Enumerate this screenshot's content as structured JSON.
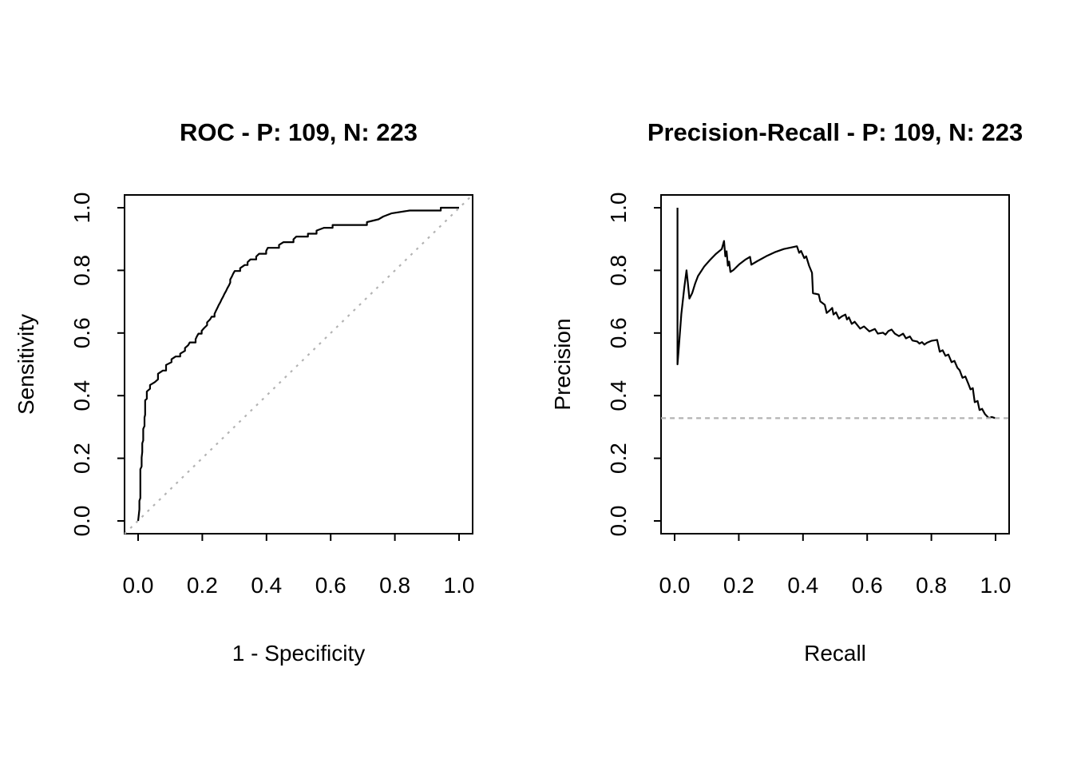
{
  "figure": {
    "background": "#ffffff",
    "curve_color": "#000000",
    "reference_color": "#b3b3b3"
  },
  "chart_data": [
    {
      "type": "line",
      "title": "ROC - P: 109, N: 223",
      "xlabel": "1 - Specificity",
      "ylabel": "Sensitivity",
      "positives": 109,
      "negatives": 223,
      "xlim": [
        0,
        1
      ],
      "ylim": [
        0,
        1
      ],
      "grid": false,
      "legend": "none",
      "xticks": {
        "values": [
          0,
          0.2,
          0.4,
          0.6,
          0.8,
          1.0
        ],
        "labels": [
          "0.0",
          "0.2",
          "0.4",
          "0.6",
          "0.8",
          "1.0"
        ]
      },
      "yticks": {
        "values": [
          0,
          0.2,
          0.4,
          0.6,
          0.8,
          1.0
        ],
        "labels": [
          "0.0",
          "0.2",
          "0.4",
          "0.6",
          "0.8",
          "1.0"
        ]
      },
      "series": [
        {
          "name": "roc-curve",
          "linetype": "solid",
          "color": "#000000",
          "points": [
            [
              0,
              0
            ],
            [
              0.002,
              0.018
            ],
            [
              0.004,
              0.037
            ],
            [
              0.004,
              0.064
            ],
            [
              0.007,
              0.073
            ],
            [
              0.007,
              0.165
            ],
            [
              0.011,
              0.174
            ],
            [
              0.011,
              0.202
            ],
            [
              0.013,
              0.22
            ],
            [
              0.013,
              0.248
            ],
            [
              0.016,
              0.257
            ],
            [
              0.016,
              0.294
            ],
            [
              0.02,
              0.303
            ],
            [
              0.02,
              0.33
            ],
            [
              0.022,
              0.339
            ],
            [
              0.022,
              0.385
            ],
            [
              0.027,
              0.39
            ],
            [
              0.027,
              0.413
            ],
            [
              0.037,
              0.422
            ],
            [
              0.037,
              0.434
            ],
            [
              0.052,
              0.443
            ],
            [
              0.062,
              0.452
            ],
            [
              0.062,
              0.47
            ],
            [
              0.077,
              0.48
            ],
            [
              0.087,
              0.48
            ],
            [
              0.087,
              0.498
            ],
            [
              0.104,
              0.507
            ],
            [
              0.104,
              0.516
            ],
            [
              0.117,
              0.525
            ],
            [
              0.131,
              0.525
            ],
            [
              0.131,
              0.534
            ],
            [
              0.146,
              0.543
            ],
            [
              0.146,
              0.552
            ],
            [
              0.156,
              0.561
            ],
            [
              0.161,
              0.57
            ],
            [
              0.179,
              0.57
            ],
            [
              0.179,
              0.58
            ],
            [
              0.183,
              0.589
            ],
            [
              0.188,
              0.598
            ],
            [
              0.198,
              0.598
            ],
            [
              0.198,
              0.607
            ],
            [
              0.206,
              0.616
            ],
            [
              0.215,
              0.625
            ],
            [
              0.215,
              0.634
            ],
            [
              0.224,
              0.643
            ],
            [
              0.229,
              0.652
            ],
            [
              0.238,
              0.652
            ],
            [
              0.238,
              0.661
            ],
            [
              0.242,
              0.67
            ],
            [
              0.247,
              0.68
            ],
            [
              0.251,
              0.689
            ],
            [
              0.256,
              0.698
            ],
            [
              0.26,
              0.707
            ],
            [
              0.265,
              0.716
            ],
            [
              0.269,
              0.725
            ],
            [
              0.274,
              0.734
            ],
            [
              0.278,
              0.743
            ],
            [
              0.283,
              0.752
            ],
            [
              0.287,
              0.761
            ],
            [
              0.287,
              0.771
            ],
            [
              0.292,
              0.78
            ],
            [
              0.296,
              0.789
            ],
            [
              0.301,
              0.798
            ],
            [
              0.318,
              0.798
            ],
            [
              0.318,
              0.807
            ],
            [
              0.332,
              0.817
            ],
            [
              0.341,
              0.817
            ],
            [
              0.341,
              0.826
            ],
            [
              0.35,
              0.835
            ],
            [
              0.368,
              0.835
            ],
            [
              0.368,
              0.844
            ],
            [
              0.377,
              0.853
            ],
            [
              0.399,
              0.853
            ],
            [
              0.399,
              0.862
            ],
            [
              0.404,
              0.872
            ],
            [
              0.439,
              0.872
            ],
            [
              0.439,
              0.881
            ],
            [
              0.453,
              0.89
            ],
            [
              0.484,
              0.89
            ],
            [
              0.484,
              0.899
            ],
            [
              0.493,
              0.908
            ],
            [
              0.529,
              0.908
            ],
            [
              0.529,
              0.917
            ],
            [
              0.556,
              0.917
            ],
            [
              0.556,
              0.927
            ],
            [
              0.579,
              0.936
            ],
            [
              0.606,
              0.936
            ],
            [
              0.606,
              0.945
            ],
            [
              0.713,
              0.945
            ],
            [
              0.713,
              0.954
            ],
            [
              0.749,
              0.963
            ],
            [
              0.764,
              0.972
            ],
            [
              0.789,
              0.982
            ],
            [
              0.846,
              0.991
            ],
            [
              0.943,
              0.991
            ],
            [
              0.943,
              1
            ],
            [
              1,
              1
            ]
          ]
        },
        {
          "name": "chance-diagonal",
          "linetype": "dotted",
          "color": "#b3b3b3",
          "points": [
            [
              -0.042,
              -0.041
            ],
            [
              1.042,
              1.041
            ]
          ]
        }
      ]
    },
    {
      "type": "line",
      "title": "Precision-Recall - P: 109, N: 223",
      "xlabel": "Recall",
      "ylabel": "Precision",
      "positives": 109,
      "negatives": 223,
      "baseline": 0.328,
      "xlim": [
        0,
        1
      ],
      "ylim": [
        0,
        1
      ],
      "grid": false,
      "legend": "none",
      "xticks": {
        "values": [
          0,
          0.2,
          0.4,
          0.6,
          0.8,
          1.0
        ],
        "labels": [
          "0.0",
          "0.2",
          "0.4",
          "0.6",
          "0.8",
          "1.0"
        ]
      },
      "yticks": {
        "values": [
          0,
          0.2,
          0.4,
          0.6,
          0.8,
          1.0
        ],
        "labels": [
          "0.0",
          "0.2",
          "0.4",
          "0.6",
          "0.8",
          "1.0"
        ]
      },
      "series": [
        {
          "name": "pr-curve",
          "linetype": "solid",
          "color": "#000000",
          "points": [
            [
              0.009,
              1
            ],
            [
              0.009,
              0.5
            ],
            [
              0.014,
              0.565
            ],
            [
              0.021,
              0.66
            ],
            [
              0.03,
              0.745
            ],
            [
              0.037,
              0.8
            ],
            [
              0.041,
              0.762
            ],
            [
              0.046,
              0.71
            ],
            [
              0.055,
              0.728
            ],
            [
              0.064,
              0.758
            ],
            [
              0.073,
              0.782
            ],
            [
              0.092,
              0.812
            ],
            [
              0.11,
              0.833
            ],
            [
              0.128,
              0.852
            ],
            [
              0.147,
              0.868
            ],
            [
              0.154,
              0.894
            ],
            [
              0.158,
              0.845
            ],
            [
              0.162,
              0.861
            ],
            [
              0.166,
              0.815
            ],
            [
              0.17,
              0.828
            ],
            [
              0.174,
              0.795
            ],
            [
              0.183,
              0.801
            ],
            [
              0.202,
              0.82
            ],
            [
              0.22,
              0.834
            ],
            [
              0.235,
              0.843
            ],
            [
              0.239,
              0.818
            ],
            [
              0.257,
              0.829
            ],
            [
              0.285,
              0.845
            ],
            [
              0.312,
              0.858
            ],
            [
              0.34,
              0.868
            ],
            [
              0.367,
              0.874
            ],
            [
              0.381,
              0.877
            ],
            [
              0.388,
              0.856
            ],
            [
              0.394,
              0.862
            ],
            [
              0.404,
              0.839
            ],
            [
              0.41,
              0.845
            ],
            [
              0.419,
              0.815
            ],
            [
              0.428,
              0.792
            ],
            [
              0.431,
              0.727
            ],
            [
              0.449,
              0.723
            ],
            [
              0.454,
              0.701
            ],
            [
              0.468,
              0.69
            ],
            [
              0.474,
              0.664
            ],
            [
              0.483,
              0.672
            ],
            [
              0.491,
              0.68
            ],
            [
              0.495,
              0.659
            ],
            [
              0.503,
              0.666
            ],
            [
              0.512,
              0.646
            ],
            [
              0.521,
              0.653
            ],
            [
              0.532,
              0.659
            ],
            [
              0.537,
              0.643
            ],
            [
              0.543,
              0.65
            ],
            [
              0.552,
              0.629
            ],
            [
              0.561,
              0.636
            ],
            [
              0.578,
              0.614
            ],
            [
              0.59,
              0.621
            ],
            [
              0.607,
              0.605
            ],
            [
              0.624,
              0.613
            ],
            [
              0.633,
              0.598
            ],
            [
              0.649,
              0.601
            ],
            [
              0.657,
              0.595
            ],
            [
              0.666,
              0.606
            ],
            [
              0.676,
              0.611
            ],
            [
              0.686,
              0.598
            ],
            [
              0.699,
              0.59
            ],
            [
              0.712,
              0.598
            ],
            [
              0.721,
              0.583
            ],
            [
              0.733,
              0.589
            ],
            [
              0.741,
              0.576
            ],
            [
              0.756,
              0.573
            ],
            [
              0.763,
              0.566
            ],
            [
              0.771,
              0.571
            ],
            [
              0.778,
              0.563
            ],
            [
              0.786,
              0.569
            ],
            [
              0.8,
              0.575
            ],
            [
              0.818,
              0.578
            ],
            [
              0.826,
              0.54
            ],
            [
              0.835,
              0.545
            ],
            [
              0.844,
              0.527
            ],
            [
              0.853,
              0.531
            ],
            [
              0.863,
              0.507
            ],
            [
              0.872,
              0.511
            ],
            [
              0.881,
              0.489
            ],
            [
              0.888,
              0.481
            ],
            [
              0.897,
              0.457
            ],
            [
              0.906,
              0.461
            ],
            [
              0.916,
              0.436
            ],
            [
              0.922,
              0.42
            ],
            [
              0.929,
              0.424
            ],
            [
              0.935,
              0.379
            ],
            [
              0.944,
              0.383
            ],
            [
              0.95,
              0.354
            ],
            [
              0.958,
              0.358
            ],
            [
              0.967,
              0.341
            ],
            [
              0.979,
              0.328
            ],
            [
              0.988,
              0.332
            ],
            [
              1,
              0.328
            ]
          ]
        },
        {
          "name": "precision-baseline",
          "linetype": "dashed",
          "color": "#b3b3b3",
          "points": [
            [
              -0.042,
              0.328
            ],
            [
              1.042,
              0.328
            ]
          ]
        }
      ]
    }
  ]
}
